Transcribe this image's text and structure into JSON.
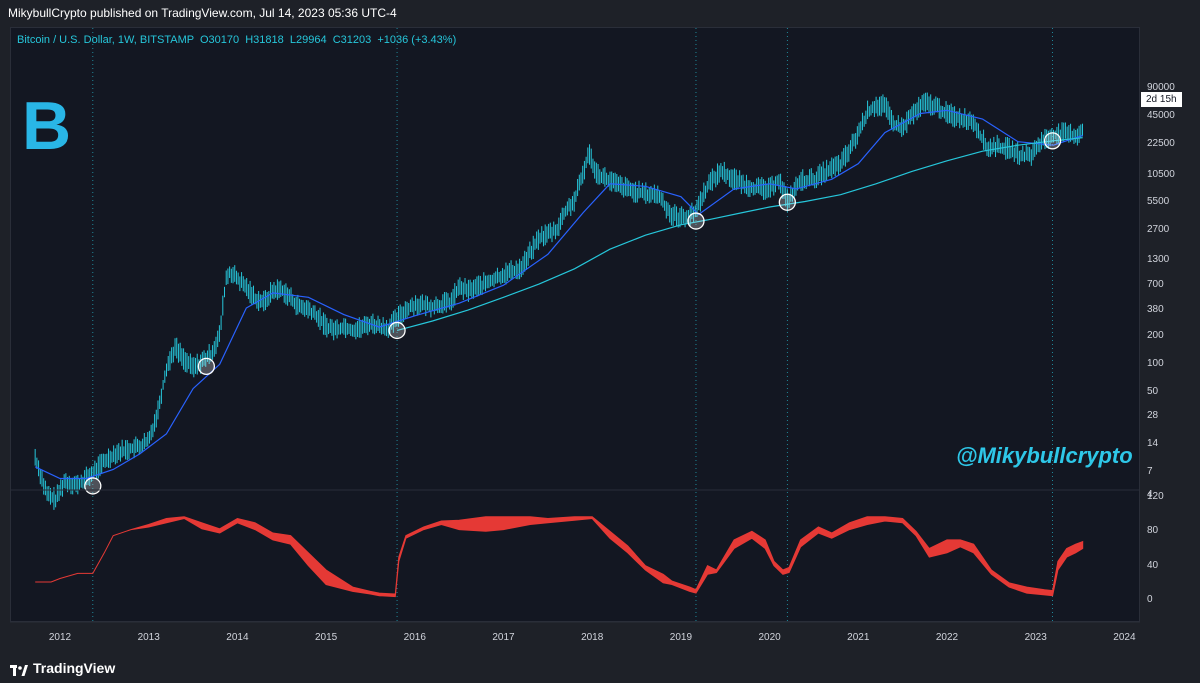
{
  "header": {
    "publisher": "MikybullCrypto published on TradingView.com, Jul 14, 2023 05:36 UTC-4",
    "symbol_line": "Bitcoin / U.S. Dollar, 1W, BITSTAMP  O30170  H31818  L29964  C31203  +1036 (+3.43%)"
  },
  "watermark": "@Mikybullcrypto",
  "btc_logo": "B",
  "countdown": "2d 15h",
  "footer": {
    "brand": "TradingView"
  },
  "colors": {
    "background": "#131722",
    "candle": "#26c6da",
    "ma_fast": "#2962ff",
    "ma_slow": "#26c6da",
    "osc_high": "#3d4fd6",
    "osc_low": "#e53935",
    "circle": "#ffffff"
  },
  "chart_data": [
    {
      "type": "line",
      "title": "Bitcoin / U.S. Dollar, 1W, BITSTAMP",
      "y_scale": "log",
      "y_ticks": [
        "90000",
        "45000",
        "22500",
        "10500",
        "5500",
        "2700",
        "1300",
        "700",
        "380",
        "200",
        "100",
        "50",
        "28",
        "14",
        "7",
        "4"
      ],
      "x_ticks": [
        "2012",
        "2013",
        "2014",
        "2015",
        "2016",
        "2017",
        "2018",
        "2019",
        "2020",
        "2021",
        "2022",
        "2023",
        "2024"
      ],
      "series": [
        {
          "style": "candles",
          "x": [
            2011.72,
            2011.85,
            2011.95,
            2012.05,
            2012.2,
            2012.35,
            2012.5,
            2012.62,
            2012.75,
            2012.9,
            2013.0,
            2013.1,
            2013.2,
            2013.3,
            2013.4,
            2013.5,
            2013.6,
            2013.7,
            2013.8,
            2013.87,
            2013.92,
            2014.0,
            2014.1,
            2014.2,
            2014.3,
            2014.4,
            2014.5,
            2014.6,
            2014.7,
            2014.8,
            2014.9,
            2015.0,
            2015.1,
            2015.2,
            2015.3,
            2015.4,
            2015.5,
            2015.6,
            2015.7,
            2015.8,
            2015.9,
            2016.0,
            2016.2,
            2016.4,
            2016.5,
            2016.6,
            2016.8,
            2017.0,
            2017.2,
            2017.4,
            2017.6,
            2017.7,
            2017.8,
            2017.9,
            2017.96,
            2018.05,
            2018.15,
            2018.3,
            2018.45,
            2018.6,
            2018.75,
            2018.88,
            2019.0,
            2019.15,
            2019.3,
            2019.45,
            2019.55,
            2019.7,
            2019.85,
            2020.0,
            2020.1,
            2020.2,
            2020.35,
            2020.5,
            2020.65,
            2020.8,
            2020.9,
            2021.0,
            2021.1,
            2021.2,
            2021.3,
            2021.4,
            2021.5,
            2021.6,
            2021.75,
            2021.86,
            2022.0,
            2022.15,
            2022.3,
            2022.45,
            2022.55,
            2022.7,
            2022.85,
            2022.95,
            2023.05,
            2023.2,
            2023.35,
            2023.45,
            2023.53
          ],
          "values": [
            10,
            4,
            3.5,
            5.5,
            5,
            6.5,
            9,
            11,
            12,
            13,
            15,
            30,
            90,
            150,
            110,
            90,
            105,
            125,
            200,
            800,
            950,
            800,
            650,
            500,
            450,
            600,
            620,
            500,
            400,
            380,
            320,
            250,
            230,
            250,
            230,
            240,
            270,
            250,
            240,
            300,
            380,
            430,
            410,
            450,
            650,
            600,
            720,
            900,
            1050,
            2200,
            2700,
            4300,
            5500,
            11000,
            18000,
            11000,
            9500,
            8000,
            7000,
            6500,
            6300,
            4000,
            3600,
            4000,
            8000,
            11500,
            10000,
            8300,
            7500,
            7200,
            9500,
            5500,
            9000,
            9300,
            11500,
            13500,
            19000,
            29000,
            48000,
            58000,
            56000,
            36000,
            33000,
            45000,
            61000,
            57000,
            47000,
            42000,
            39000,
            20000,
            21000,
            19500,
            16500,
            17000,
            23000,
            28000,
            28500,
            27000,
            31203
          ]
        },
        {
          "name": "",
          "style": "ma_fast",
          "x": [
            2011.72,
            2012.0,
            2012.3,
            2012.6,
            2012.9,
            2013.2,
            2013.5,
            2013.8,
            2014.1,
            2014.4,
            2014.8,
            2015.2,
            2015.6,
            2016.0,
            2016.5,
            2017.0,
            2017.5,
            2017.9,
            2018.2,
            2018.6,
            2019.0,
            2019.2,
            2019.6,
            2020.0,
            2020.3,
            2020.7,
            2021.0,
            2021.3,
            2021.7,
            2022.0,
            2022.4,
            2022.8,
            2023.2,
            2023.53
          ],
          "values": [
            8,
            6,
            6,
            7.5,
            11,
            18,
            55,
            100,
            400,
            580,
            520,
            340,
            250,
            330,
            450,
            700,
            1500,
            4200,
            8500,
            8000,
            6200,
            4000,
            7500,
            8500,
            7500,
            9500,
            14000,
            30000,
            48000,
            52000,
            42000,
            24000,
            22000,
            28000
          ]
        },
        {
          "name": "",
          "style": "ma_slow",
          "x": [
            2015.8,
            2016.2,
            2016.6,
            2017.0,
            2017.4,
            2017.8,
            2018.2,
            2018.6,
            2019.0,
            2019.3,
            2019.7,
            2020.0,
            2020.4,
            2020.8,
            2021.2,
            2021.6,
            2022.0,
            2022.4,
            2022.8,
            2023.2,
            2023.53
          ],
          "values": [
            230,
            290,
            380,
            520,
            720,
            1050,
            1700,
            2400,
            3100,
            3500,
            4200,
            4800,
            5500,
            6500,
            8500,
            11500,
            15000,
            19000,
            22000,
            24500,
            26500
          ]
        }
      ],
      "markers": [
        {
          "x": 2012.37,
          "y": 5
        },
        {
          "x": 2013.65,
          "y": 95
        },
        {
          "x": 2015.8,
          "y": 230
        },
        {
          "x": 2019.17,
          "y": 3400
        },
        {
          "x": 2020.2,
          "y": 5400
        },
        {
          "x": 2023.19,
          "y": 24500
        }
      ],
      "vlines": [
        2012.37,
        2015.8,
        2019.17,
        2020.2,
        2023.19
      ]
    },
    {
      "type": "area",
      "y_ticks": [
        "120",
        "80",
        "40",
        "0"
      ],
      "ylim": [
        0,
        120
      ],
      "series": [
        {
          "name": "",
          "x": [
            2011.72,
            2011.9,
            2012.0,
            2012.2,
            2012.37,
            2012.5,
            2012.6,
            2012.8,
            2013.0,
            2013.2,
            2013.4,
            2013.6,
            2013.8,
            2014.0,
            2014.2,
            2014.4,
            2014.6,
            2014.8,
            2015.0,
            2015.3,
            2015.5,
            2015.6,
            2015.78,
            2015.82,
            2015.9,
            2016.1,
            2016.3,
            2016.5,
            2016.8,
            2017.0,
            2017.3,
            2017.5,
            2017.8,
            2018.0,
            2018.2,
            2018.4,
            2018.6,
            2018.8,
            2018.9,
            2019.1,
            2019.17,
            2019.3,
            2019.4,
            2019.6,
            2019.8,
            2019.95,
            2020.05,
            2020.15,
            2020.22,
            2020.35,
            2020.55,
            2020.7,
            2020.9,
            2021.1,
            2021.3,
            2021.5,
            2021.65,
            2021.8,
            2022.0,
            2022.15,
            2022.3,
            2022.5,
            2022.7,
            2022.9,
            2023.1,
            2023.19,
            2023.25,
            2023.35,
            2023.45,
            2023.53
          ],
          "values": [
            21,
            21,
            25,
            31,
            31,
            55,
            75,
            82,
            88,
            95,
            97,
            90,
            83,
            95,
            90,
            78,
            75,
            55,
            35,
            15,
            10,
            8,
            7,
            50,
            75,
            85,
            92,
            93,
            97,
            97,
            97,
            95,
            97,
            97,
            80,
            63,
            40,
            30,
            22,
            15,
            12,
            40,
            35,
            70,
            80,
            70,
            45,
            35,
            38,
            70,
            85,
            78,
            90,
            97,
            97,
            95,
            80,
            60,
            70,
            70,
            65,
            35,
            20,
            15,
            12,
            11,
            45,
            60,
            65,
            68
          ],
          "lower": [
            21,
            21,
            25,
            31,
            31,
            55,
            75,
            82,
            85,
            90,
            95,
            83,
            78,
            90,
            82,
            70,
            65,
            40,
            18,
            10,
            7,
            5,
            4,
            45,
            72,
            82,
            88,
            82,
            80,
            82,
            88,
            90,
            93,
            95,
            72,
            55,
            35,
            20,
            18,
            10,
            8,
            30,
            32,
            60,
            72,
            60,
            40,
            30,
            32,
            62,
            78,
            72,
            82,
            88,
            92,
            90,
            75,
            50,
            55,
            62,
            55,
            30,
            15,
            8,
            6,
            5,
            35,
            50,
            55,
            60
          ]
        }
      ]
    }
  ]
}
